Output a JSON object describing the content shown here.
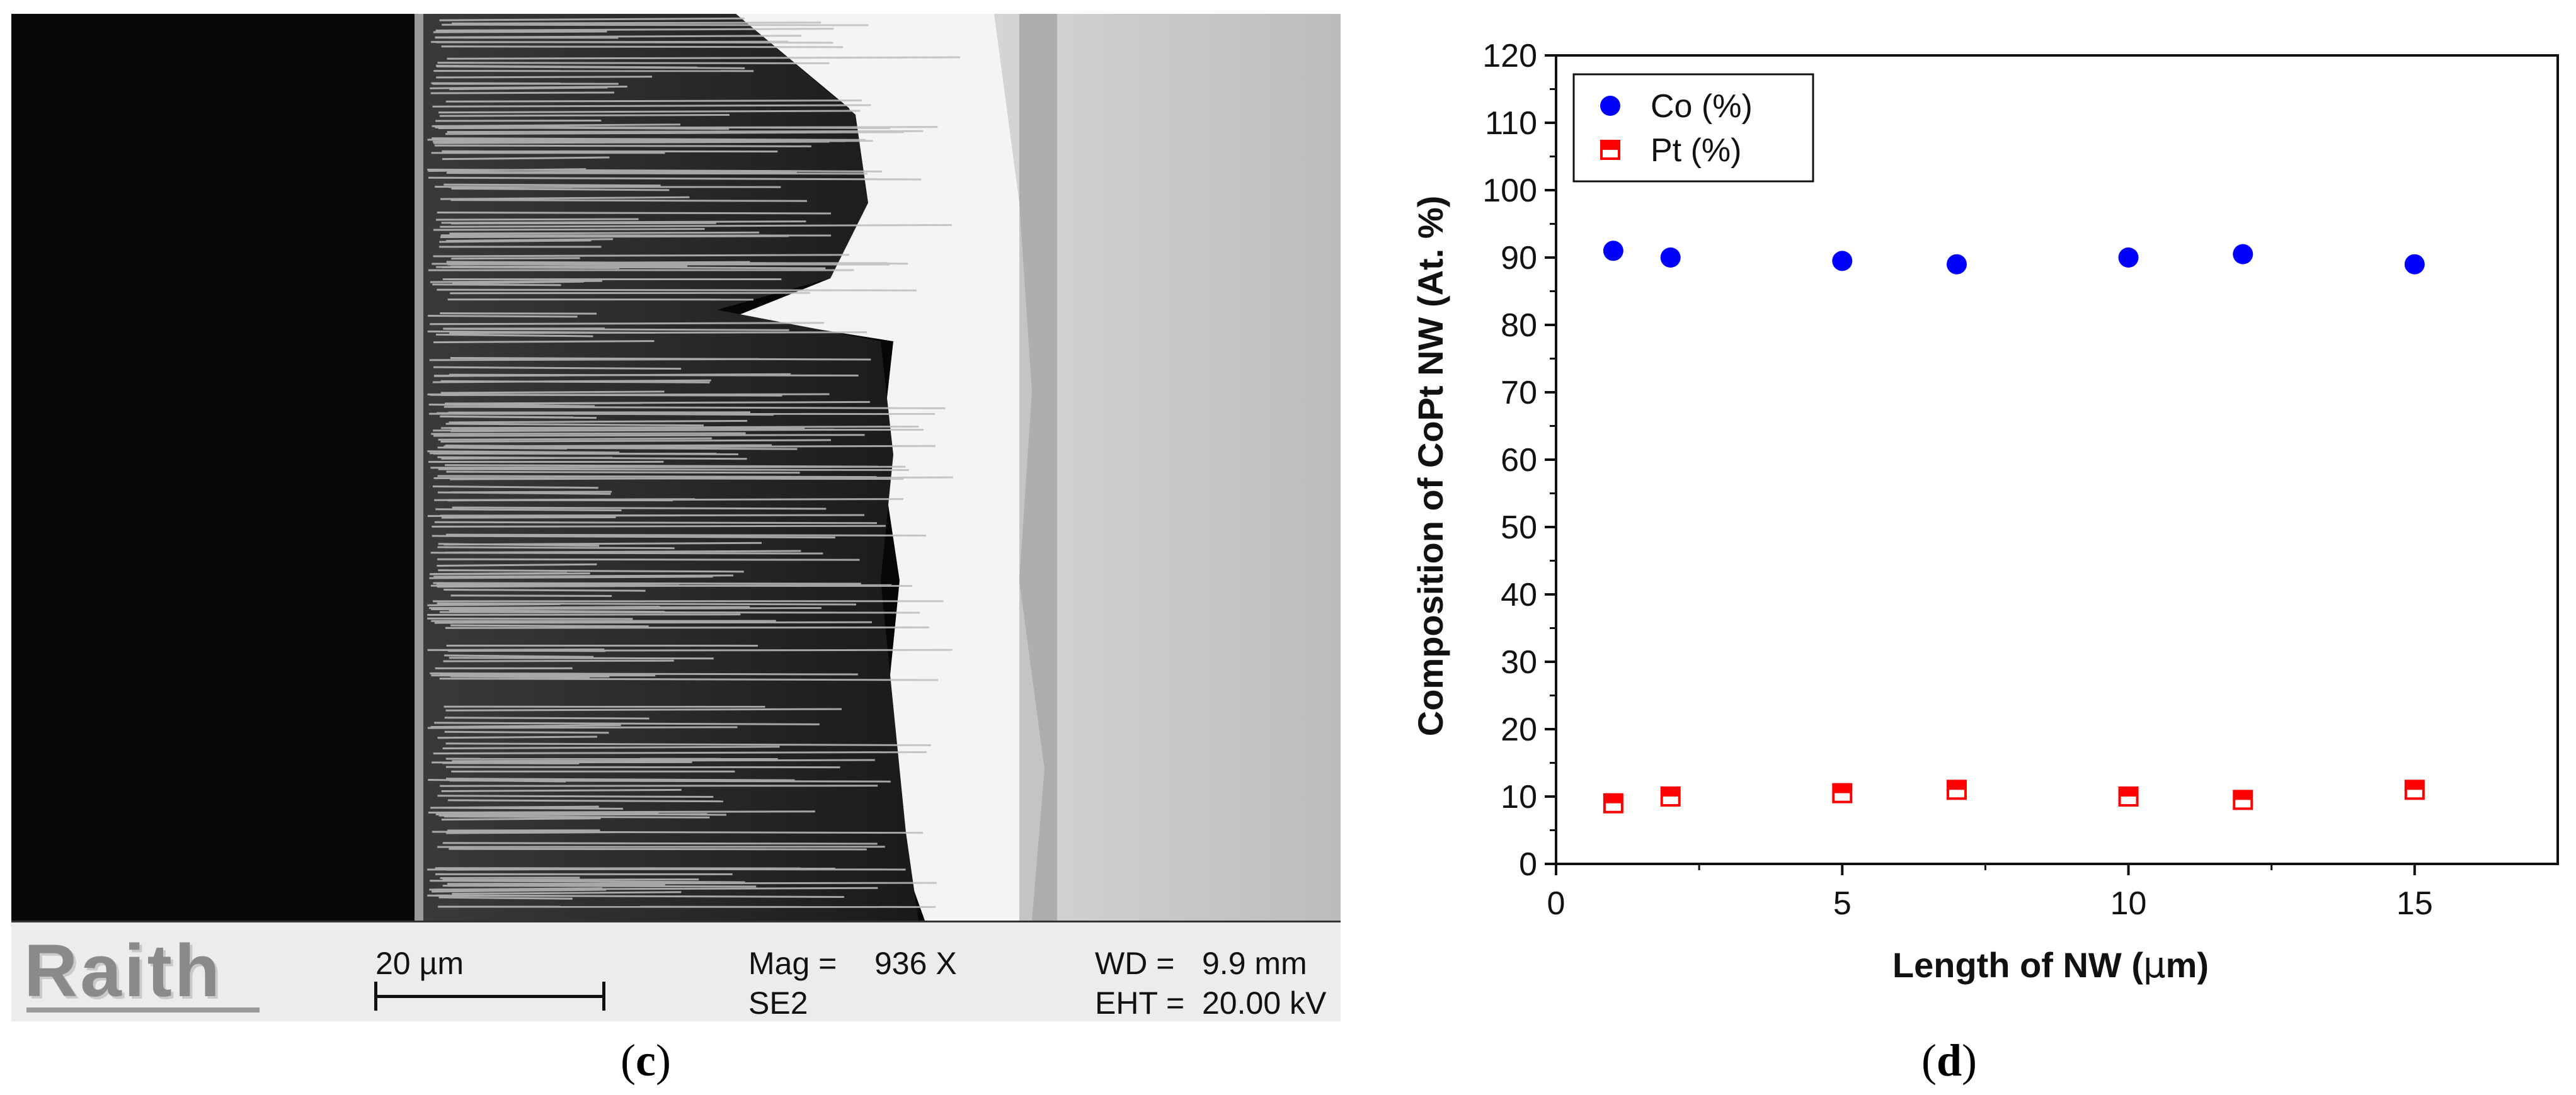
{
  "panels": {
    "c": {
      "label_open": "(",
      "label_letter": "c",
      "label_close": ")",
      "infobar": {
        "logo": "Raith",
        "scale_text": "20 µm",
        "mag_label": "Mag =",
        "mag_value": "936 X",
        "detector": "SE2",
        "wd_label": "WD =",
        "wd_value": "9.9 mm",
        "eht_label": "EHT =",
        "eht_value": "20.00 kV"
      }
    },
    "d": {
      "label_open": "(",
      "label_letter": "d",
      "label_close": ")"
    }
  },
  "colors": {
    "co_series": "#0000ff",
    "pt_series": "#ff0000"
  },
  "chart_data": {
    "type": "scatter",
    "title": "",
    "xlabel_prefix": "Length of NW (",
    "xlabel_mu": "μ",
    "xlabel_suffix": "m)",
    "ylabel": "Composition of CoPt NW (At. %)",
    "xlim": [
      0,
      17.5
    ],
    "ylim": [
      0,
      120
    ],
    "xticks": [
      0,
      5,
      10,
      15
    ],
    "yticks": [
      0,
      10,
      20,
      30,
      40,
      50,
      60,
      70,
      80,
      90,
      100,
      110,
      120
    ],
    "grid": false,
    "legend_position": "top-left",
    "series": [
      {
        "name": "Co (%)",
        "marker": "circle",
        "points": [
          {
            "x": 1,
            "y": 91
          },
          {
            "x": 2,
            "y": 90
          },
          {
            "x": 5,
            "y": 89.5
          },
          {
            "x": 7,
            "y": 89
          },
          {
            "x": 10,
            "y": 90
          },
          {
            "x": 12,
            "y": 90.5
          },
          {
            "x": 15,
            "y": 89
          }
        ]
      },
      {
        "name": "Pt (%)",
        "marker": "half-filled-square",
        "points": [
          {
            "x": 1,
            "y": 9
          },
          {
            "x": 2,
            "y": 10
          },
          {
            "x": 5,
            "y": 10.5
          },
          {
            "x": 7,
            "y": 11
          },
          {
            "x": 10,
            "y": 10
          },
          {
            "x": 12,
            "y": 9.5
          },
          {
            "x": 15,
            "y": 11
          }
        ]
      }
    ]
  }
}
